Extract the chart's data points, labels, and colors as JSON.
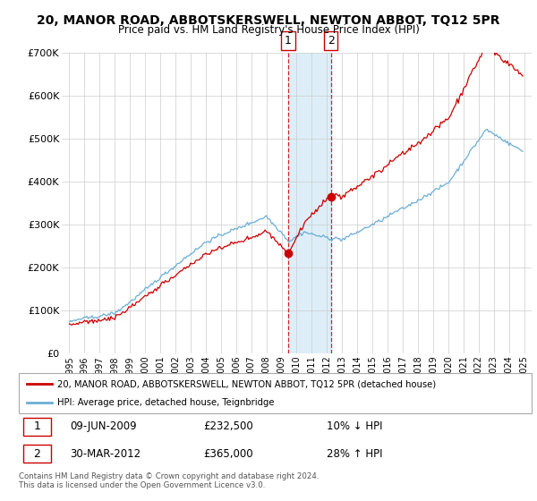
{
  "title": "20, MANOR ROAD, ABBOTSKERSWELL, NEWTON ABBOT, TQ12 5PR",
  "subtitle": "Price paid vs. HM Land Registry's House Price Index (HPI)",
  "legend_line1": "20, MANOR ROAD, ABBOTSKERSWELL, NEWTON ABBOT, TQ12 5PR (detached house)",
  "legend_line2": "HPI: Average price, detached house, Teignbridge",
  "sale1_label": "1",
  "sale1_date": "09-JUN-2009",
  "sale1_price": "£232,500",
  "sale1_hpi": "10% ↓ HPI",
  "sale2_label": "2",
  "sale2_date": "30-MAR-2012",
  "sale2_price": "£365,000",
  "sale2_hpi": "28% ↑ HPI",
  "footer": "Contains HM Land Registry data © Crown copyright and database right 2024.\nThis data is licensed under the Open Government Licence v3.0.",
  "hpi_color": "#6baed6",
  "price_color": "#cc0000",
  "sale_marker_color": "#cc0000",
  "highlight_color": "#ddeef8",
  "vline_color": "#cc0000",
  "box_border_color": "#cc0000",
  "ylim": [
    0,
    700000
  ],
  "yticks": [
    0,
    100000,
    200000,
    300000,
    400000,
    500000,
    600000,
    700000
  ],
  "ytick_labels": [
    "£0",
    "£100K",
    "£200K",
    "£300K",
    "£400K",
    "£500K",
    "£600K",
    "£700K"
  ],
  "sale1_x": 2009.44,
  "sale1_y": 232500,
  "sale2_x": 2012.25,
  "sale2_y": 365000,
  "xmin": 1995.0,
  "xmax": 2025.0
}
